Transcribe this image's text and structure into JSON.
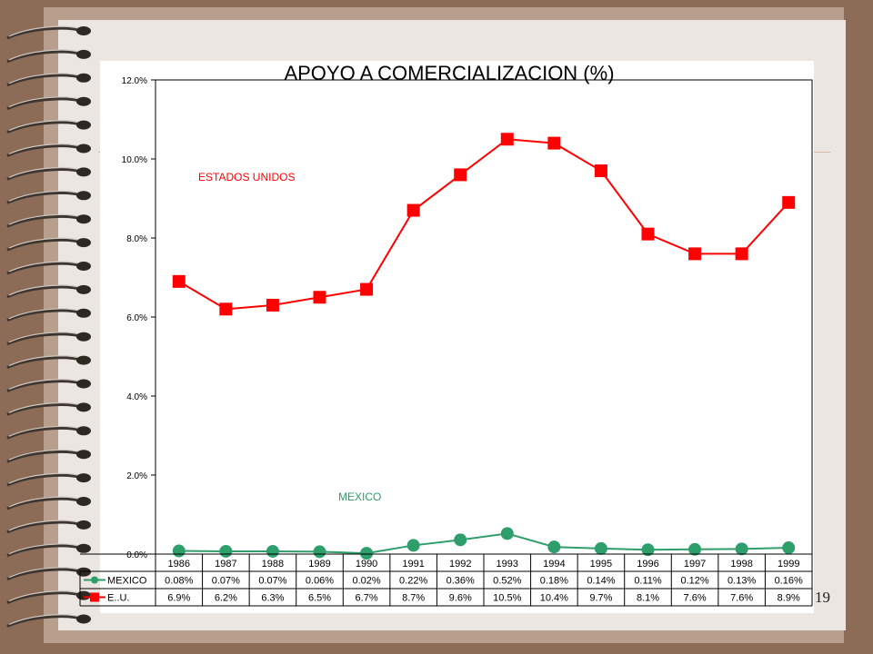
{
  "slide": {
    "number": "19"
  },
  "colors": {
    "us": "#ff0000",
    "mexico": "#2e9e6b",
    "background": "#8c6b57",
    "paper": "#ece6e2"
  },
  "chart_data": {
    "type": "line",
    "title": "APOYO A COMERCIALIZACION (%)",
    "xlabel": "",
    "ylabel": "",
    "categories": [
      "1986",
      "1987",
      "1988",
      "1989",
      "1990",
      "1991",
      "1992",
      "1993",
      "1994",
      "1995",
      "1996",
      "1997",
      "1998",
      "1999"
    ],
    "ylim": [
      0,
      12
    ],
    "yticks": [
      "0.0%",
      "2.0%",
      "4.0%",
      "6.0%",
      "8.0%",
      "10.0%",
      "12.0%"
    ],
    "grid": false,
    "legend_position": "data-table",
    "series": [
      {
        "name": "MEXICO",
        "inline_label": "MEXICO",
        "color": "#2e9e6b",
        "marker": "circle",
        "values": [
          0.08,
          0.07,
          0.07,
          0.06,
          0.02,
          0.22,
          0.36,
          0.52,
          0.18,
          0.14,
          0.11,
          0.12,
          0.13,
          0.16
        ],
        "table_labels": [
          "0.08%",
          "0.07%",
          "0.07%",
          "0.06%",
          "0.02%",
          "0.22%",
          "0.36%",
          "0.52%",
          "0.18%",
          "0.14%",
          "0.11%",
          "0.12%",
          "0.13%",
          "0.16%"
        ]
      },
      {
        "name": "E..U.",
        "inline_label": "ESTADOS UNIDOS",
        "color": "#ff0000",
        "marker": "square",
        "values": [
          6.9,
          6.2,
          6.3,
          6.5,
          6.7,
          8.7,
          9.6,
          10.5,
          10.4,
          9.7,
          8.1,
          7.6,
          7.6,
          8.9
        ],
        "table_labels": [
          "6.9%",
          "6.2%",
          "6.3%",
          "6.5%",
          "6.7%",
          "8.7%",
          "9.6%",
          "10.5%",
          "10.4%",
          "9.7%",
          "8.1%",
          "7.6%",
          "7.6%",
          "8.9%"
        ]
      }
    ]
  }
}
